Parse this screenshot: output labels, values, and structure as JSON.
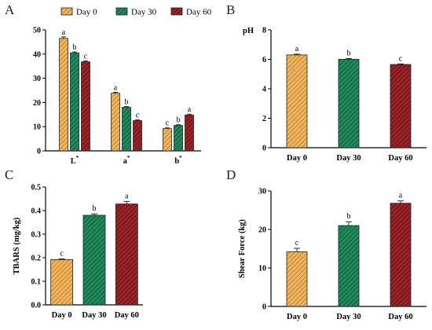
{
  "colors": {
    "day0": "#f2b45b",
    "day30": "#1f8a5b",
    "day60": "#9b2226",
    "stroke": "#222222"
  },
  "chart_data": [
    {
      "panel": "A",
      "type": "bar",
      "categories": [
        "L*",
        "a*",
        "b*"
      ],
      "series": [
        {
          "name": "Day 0",
          "values": [
            46.5,
            23.8,
            9.2
          ],
          "errors": [
            0.6,
            0.4,
            0.3
          ],
          "letters": [
            "a",
            "a",
            "c"
          ]
        },
        {
          "name": "Day 30",
          "values": [
            40.5,
            18.0,
            10.5
          ],
          "errors": [
            0.4,
            0.3,
            0.3
          ],
          "letters": [
            "b",
            "b",
            "b"
          ]
        },
        {
          "name": "Day 60",
          "values": [
            36.8,
            12.5,
            14.8
          ],
          "errors": [
            0.4,
            0.3,
            0.4
          ],
          "letters": [
            "c",
            "c",
            "a"
          ]
        }
      ],
      "ylim": [
        0,
        50
      ],
      "yticks": [
        0,
        10,
        20,
        30,
        40,
        50
      ],
      "ylabel": "",
      "legend": "top"
    },
    {
      "panel": "B",
      "type": "bar",
      "categories": [
        "Day 0",
        "Day 30",
        "Day 60"
      ],
      "values": [
        6.3,
        6.0,
        5.65
      ],
      "errors": [
        0.05,
        0.05,
        0.04
      ],
      "letters": [
        "a",
        "b",
        "c"
      ],
      "ylim": [
        0,
        8
      ],
      "yticks": [
        0,
        2,
        4,
        6,
        8
      ],
      "ylabel": "pH"
    },
    {
      "panel": "C",
      "type": "bar",
      "categories": [
        "Day 0",
        "Day 30",
        "Day 60"
      ],
      "values": [
        0.192,
        0.38,
        0.428
      ],
      "errors": [
        0.003,
        0.006,
        0.011
      ],
      "letters": [
        "c",
        "b",
        "a"
      ],
      "ylim": [
        0,
        0.5
      ],
      "yticks": [
        "0.0",
        "0.1",
        "0.2",
        "0.3",
        "0.4",
        "0.5"
      ],
      "ylabel": "TBARS (mg/kg)"
    },
    {
      "panel": "D",
      "type": "bar",
      "categories": [
        "Day 0",
        "Day 30",
        "Day 60"
      ],
      "values": [
        14.2,
        21.0,
        26.8
      ],
      "errors": [
        0.9,
        1.0,
        0.6
      ],
      "letters": [
        "c",
        "b",
        "a"
      ],
      "ylim": [
        0,
        30
      ],
      "yticks": [
        0,
        10,
        20,
        30
      ],
      "ylabel": "Shear Force (kg)"
    }
  ]
}
